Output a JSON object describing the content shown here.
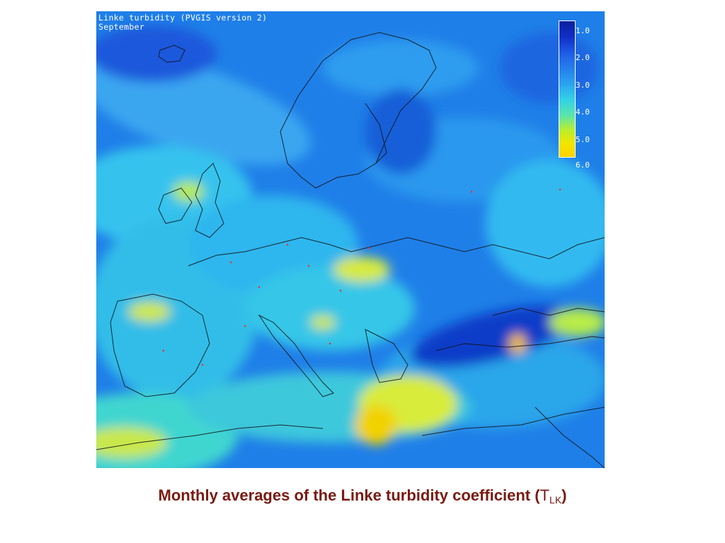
{
  "map": {
    "title_line1": "Linke turbidity (PVGIS version 2)",
    "title_line2": "September",
    "legend": {
      "ticks": [
        "1.0",
        "2.0",
        "3.0",
        "4.0",
        "5.0",
        "6.0"
      ],
      "colors": [
        "#0a1f9e",
        "#1f5ee6",
        "#2b9ff0",
        "#33d2e6",
        "#b8ee2f",
        "#ffd100"
      ]
    }
  },
  "caption": {
    "text": "Monthly averages of the Linke turbidity coefficient",
    "symbol": "T",
    "subscript": "LK"
  }
}
